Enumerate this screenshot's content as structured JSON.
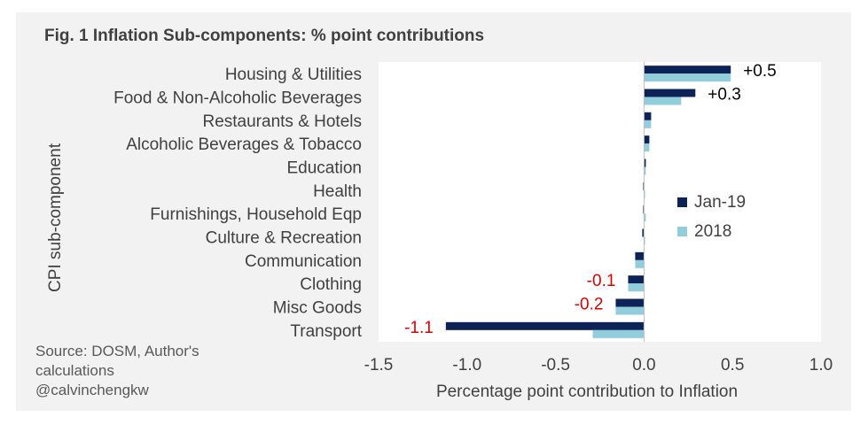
{
  "chart_data": {
    "type": "bar",
    "orientation": "horizontal",
    "title": "Fig. 1 Inflation Sub-components: % point contributions",
    "xlabel": "Percentage point contribution to Inflation",
    "ylabel": "CPI sub-component",
    "xlim": [
      -1.5,
      1.0
    ],
    "xticks": [
      -1.5,
      -1.0,
      -0.5,
      0.0,
      0.5,
      1.0
    ],
    "xtick_labels": [
      "-1.5",
      "-1.0",
      "-0.5",
      "0.0",
      "0.5",
      "1.0"
    ],
    "grid": false,
    "legend_position": "right",
    "categories": [
      "Housing & Utilities",
      "Food & Non-Alcoholic Beverages",
      "Restaurants & Hotels",
      "Alcoholic Beverages & Tobacco",
      "Education",
      "Health",
      "Furnishings, Household Eqp",
      "Culture & Recreation",
      "Communication",
      "Clothing",
      "Misc Goods",
      "Transport"
    ],
    "series": [
      {
        "name": "Jan-19",
        "color": "#0d2257",
        "values": [
          0.49,
          0.29,
          0.04,
          0.03,
          0.01,
          -0.005,
          -0.005,
          -0.01,
          -0.05,
          -0.09,
          -0.16,
          -1.12
        ]
      },
      {
        "name": "2018",
        "color": "#92cddc",
        "values": [
          0.49,
          0.21,
          0.04,
          0.03,
          0.01,
          0.0,
          0.01,
          0.0,
          -0.05,
          -0.09,
          -0.16,
          -0.29
        ]
      }
    ],
    "data_labels": [
      {
        "category": "Housing & Utilities",
        "text": "+0.5",
        "color": "#000000"
      },
      {
        "category": "Food & Non-Alcoholic Beverages",
        "text": "+0.3",
        "color": "#000000"
      },
      {
        "category": "Clothing",
        "text": "-0.1",
        "color": "#e00000"
      },
      {
        "category": "Misc Goods",
        "text": "-0.2",
        "color": "#e00000"
      },
      {
        "category": "Transport",
        "text": "-1.1",
        "color": "#e00000"
      }
    ]
  },
  "source": [
    "Source: DOSM, Author's",
    "calculations",
    "@calvinchengkw"
  ],
  "colors": {
    "panel": "#f2f2f2",
    "plot": "#ffffff",
    "axis_line": "#bfbfbf",
    "text": "#404040"
  }
}
